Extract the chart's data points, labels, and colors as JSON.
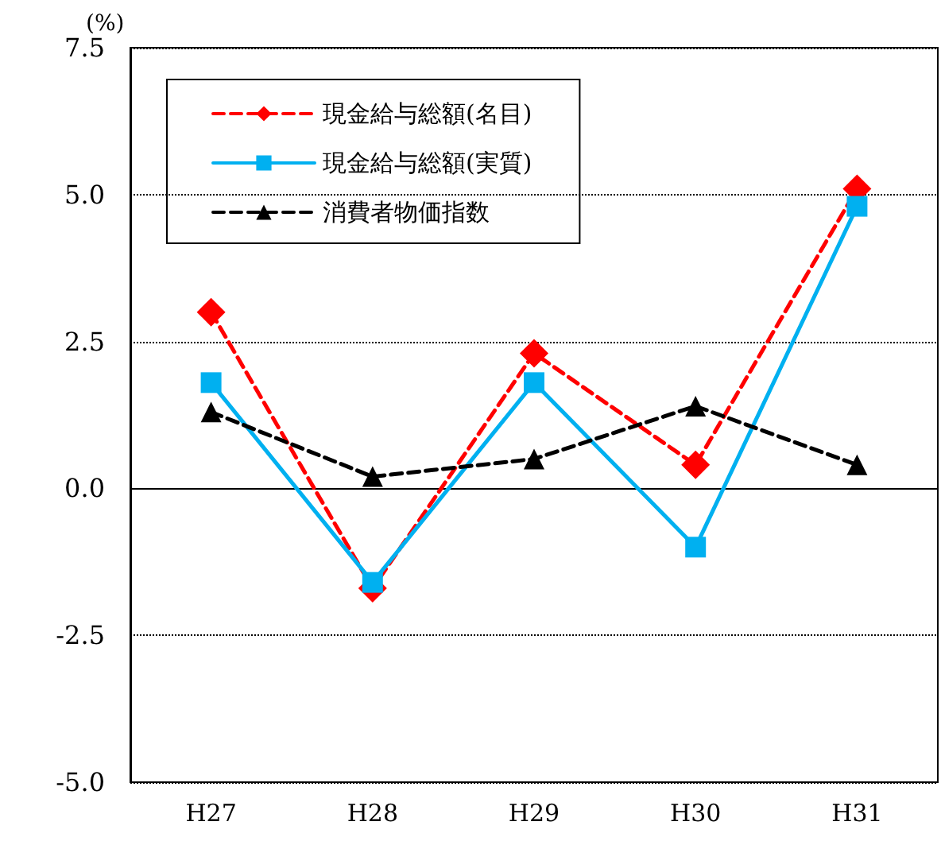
{
  "chart_data": {
    "type": "line",
    "ylabel": "(%)",
    "categories": [
      "H27",
      "H28",
      "H29",
      "H30",
      "H31"
    ],
    "series": [
      {
        "name": "現金給与総額(名目)",
        "color": "#ff0000",
        "values": [
          3.0,
          -1.7,
          2.3,
          0.4,
          5.1
        ],
        "marker": "diamond",
        "line_style": "dashed"
      },
      {
        "name": "現金給与総額(実質)",
        "color": "#00b0f0",
        "values": [
          1.8,
          -1.6,
          1.8,
          -1.0,
          4.8
        ],
        "marker": "square",
        "line_style": "solid"
      },
      {
        "name": "消費者物価指数",
        "color": "#000000",
        "values": [
          1.3,
          0.2,
          0.5,
          1.4,
          0.4
        ],
        "marker": "triangle",
        "line_style": "dashed"
      }
    ],
    "ylim": [
      -5,
      7.5
    ],
    "yticks": [
      {
        "value": -5,
        "label": "-5.0"
      },
      {
        "value": -2.5,
        "label": "-2.5"
      },
      {
        "value": 0,
        "label": "0.0"
      },
      {
        "value": 2.5,
        "label": "2.5"
      },
      {
        "value": 5,
        "label": "5.0"
      },
      {
        "value": 7.5,
        "label": "7.5"
      }
    ],
    "grid": "y",
    "legend": "top left"
  }
}
